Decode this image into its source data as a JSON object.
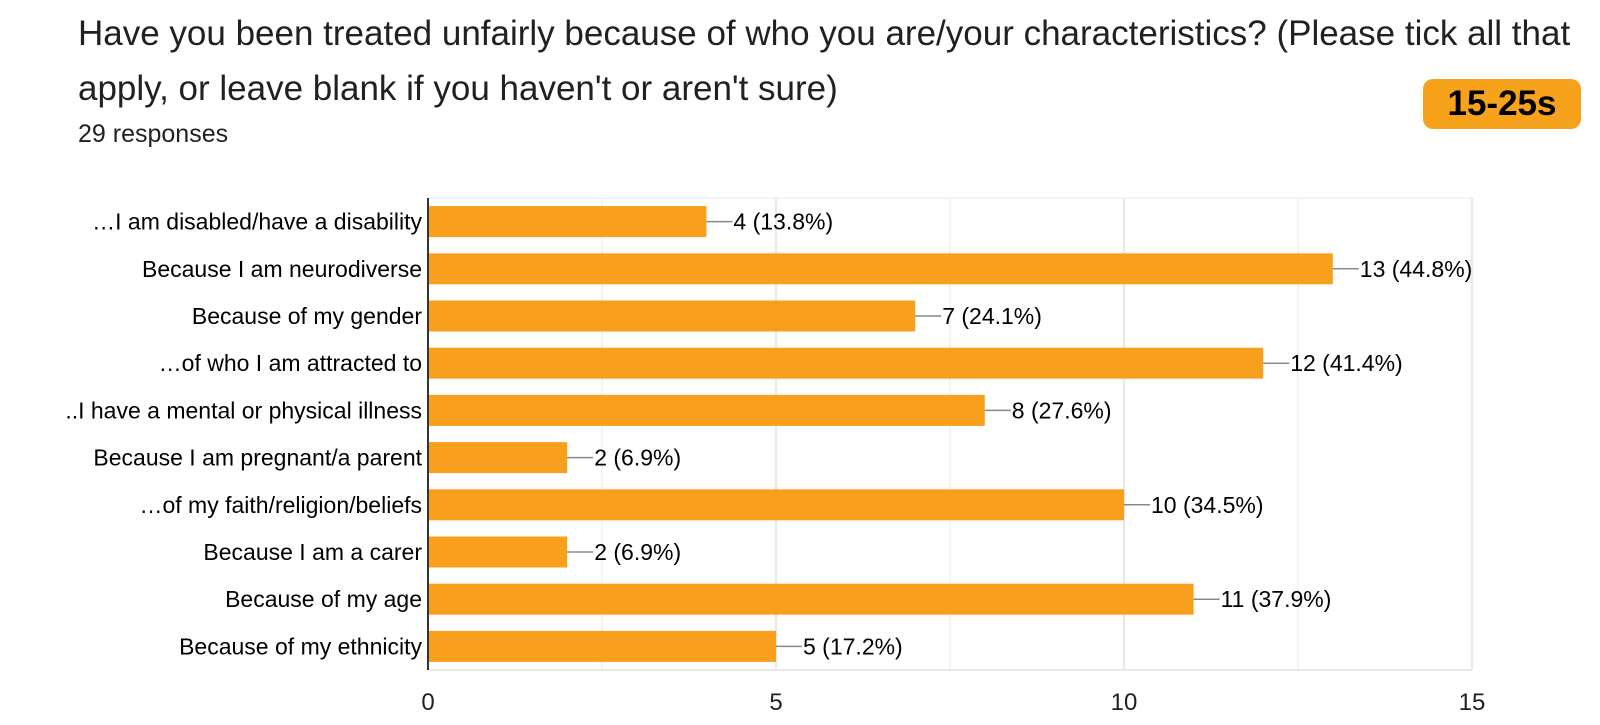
{
  "question": {
    "title": "Have you been treated unfairly because of who you are/your characteristics? (Please tick all that apply, or leave blank if you haven't or aren't sure)",
    "responses": "29 responses"
  },
  "badge": {
    "label": "15-25s",
    "color": "#f7a21b"
  },
  "chart_data": {
    "type": "bar",
    "orientation": "horizontal",
    "categories": [
      "…I am disabled/have  a disability",
      "Because I am neurodiverse",
      "Because of my gender",
      "…of who I am attracted to",
      "..I have a mental or physical illness",
      "Because I am pregnant/a parent",
      "…of my faith/religion/beliefs",
      "Because I am a carer",
      "Because of my age",
      "Because of my ethnicity"
    ],
    "values": [
      4,
      13,
      7,
      12,
      8,
      2,
      10,
      2,
      11,
      5
    ],
    "value_labels": [
      "4 (13.8%)",
      "13 (44.8%)",
      "7 (24.1%)",
      "12 (41.4%)",
      "8 (27.6%)",
      "2 (6.9%)",
      "10 (34.5%)",
      "2 (6.9%)",
      "11 (37.9%)",
      "5 (17.2%)"
    ],
    "xlim": [
      0,
      15
    ],
    "xticks": [
      0,
      5,
      10,
      15
    ],
    "grid": true,
    "bar_color": "#f99f1e"
  }
}
